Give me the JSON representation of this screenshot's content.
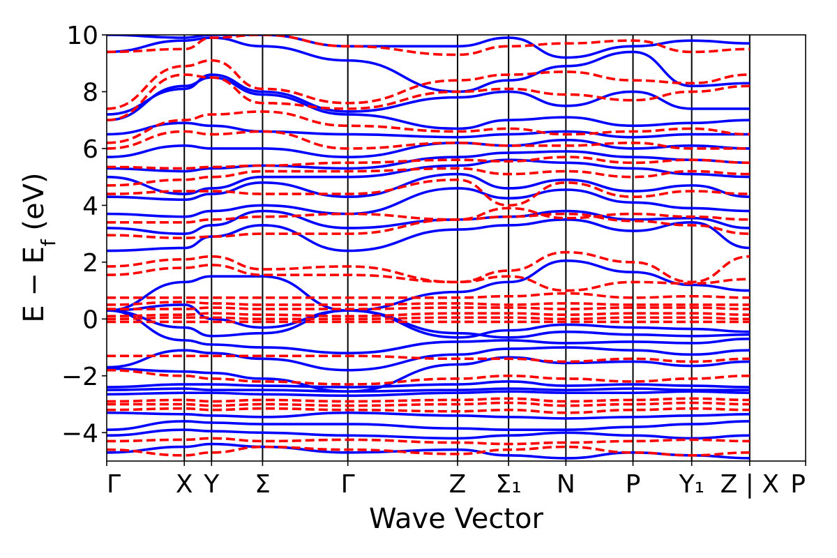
{
  "chart_data": {
    "type": "line",
    "title": "",
    "xlabel": "Wave Vector",
    "ylabel": "E − E_f (eV)",
    "ylim": [
      -5,
      10
    ],
    "yticks": [
      -4,
      -2,
      0,
      2,
      4,
      6,
      8,
      10
    ],
    "ytick_labels": [
      "−4",
      "−2",
      "0",
      "2",
      "4",
      "6",
      "8",
      "10"
    ],
    "xlim": [
      0,
      1
    ],
    "high_symmetry_points": [
      {
        "label": "Γ",
        "x": 0.0
      },
      {
        "label": "X",
        "x": 0.111
      },
      {
        "label": "Y",
        "x": 0.15
      },
      {
        "label": "Σ",
        "x": 0.223
      },
      {
        "label": "Γ",
        "x": 0.345
      },
      {
        "label": "Z",
        "x": 0.502
      },
      {
        "label": "Σ₁",
        "x": 0.575
      },
      {
        "label": "N",
        "x": 0.657
      },
      {
        "label": "P",
        "x": 0.753
      },
      {
        "label": "Y₁",
        "x": 0.837
      },
      {
        "label": "Z | X",
        "x": 0.92
      },
      {
        "label": "P",
        "x": 1.0
      }
    ],
    "vertical_lines": [
      0.111,
      0.15,
      0.223,
      0.345,
      0.502,
      0.575,
      0.657,
      0.753,
      0.837,
      0.92
    ],
    "grid": false,
    "series": [
      {
        "style": "solid",
        "color": "#0000ff",
        "bands": [
          [
            -4.7,
            -4.5,
            -4.4,
            -4.5,
            -4.7,
            -4.6,
            -4.8,
            -4.9,
            -4.7,
            -4.8,
            -4.9
          ],
          [
            -4.1,
            -3.9,
            -3.95,
            -4.0,
            -4.1,
            -4.2,
            -4.1,
            -4.0,
            -4.1,
            -4.2,
            -4.1
          ],
          [
            -3.9,
            -3.6,
            -3.65,
            -3.7,
            -3.7,
            -3.85,
            -3.9,
            -3.9,
            -3.8,
            -3.7,
            -3.6
          ],
          [
            -3.3,
            -3.35,
            -3.4,
            -3.45,
            -3.3,
            -3.4,
            -3.45,
            -3.5,
            -3.45,
            -3.4,
            -3.35
          ],
          [
            -2.65,
            -2.6,
            -2.6,
            -2.65,
            -2.7,
            -2.6,
            -2.55,
            -2.6,
            -2.6,
            -2.55,
            -2.6
          ],
          [
            -2.5,
            -2.45,
            -2.5,
            -2.5,
            -2.55,
            -2.5,
            -2.45,
            -2.5,
            -2.45,
            -2.5,
            -2.5
          ],
          [
            -2.4,
            -2.3,
            -2.3,
            -2.35,
            -2.4,
            -2.3,
            -2.2,
            -2.35,
            -2.3,
            -2.35,
            -2.4
          ],
          [
            -1.75,
            -1.85,
            -1.9,
            -2.1,
            -2.55,
            -1.6,
            -1.35,
            -1.55,
            -1.5,
            -1.65,
            -1.5
          ],
          [
            -1.7,
            -1.1,
            -1.2,
            -1.4,
            -1.8,
            -1.25,
            -1.05,
            -1.0,
            -1.1,
            -1.25,
            -1.1
          ],
          [
            0.3,
            -0.75,
            -0.9,
            -1.0,
            -1.2,
            -0.8,
            -0.75,
            -0.85,
            -0.8,
            -0.85,
            -0.7
          ],
          [
            0.3,
            -0.3,
            -0.6,
            -0.5,
            0.3,
            -0.5,
            -0.65,
            -0.45,
            -0.55,
            -0.6,
            -0.55
          ],
          [
            0.3,
            0.5,
            0.0,
            -0.3,
            0.3,
            -0.65,
            -0.4,
            -0.2,
            -0.3,
            -0.35,
            -0.45
          ],
          [
            0.3,
            1.3,
            1.5,
            1.5,
            0.3,
            0.95,
            1.3,
            2.05,
            1.65,
            1.2,
            1.0
          ],
          [
            2.4,
            2.5,
            2.9,
            3.3,
            2.4,
            3.15,
            3.3,
            3.5,
            3.1,
            3.4,
            2.5
          ],
          [
            3.2,
            3.0,
            3.3,
            3.8,
            3.2,
            3.5,
            3.6,
            3.8,
            3.5,
            3.55,
            3.2
          ],
          [
            3.7,
            3.6,
            3.8,
            4.0,
            3.7,
            4.6,
            4.25,
            4.55,
            4.1,
            3.9,
            3.8
          ],
          [
            4.3,
            4.2,
            4.4,
            4.8,
            4.3,
            5.1,
            4.6,
            4.9,
            4.5,
            4.7,
            4.3
          ],
          [
            5.0,
            4.4,
            4.6,
            5.0,
            5.0,
            5.4,
            5.6,
            5.5,
            5.3,
            5.1,
            5.0
          ],
          [
            5.3,
            5.2,
            5.3,
            5.4,
            5.3,
            5.7,
            5.85,
            5.9,
            5.7,
            5.6,
            5.5
          ],
          [
            5.7,
            6.1,
            6.0,
            6.0,
            5.7,
            6.2,
            6.1,
            6.3,
            6.0,
            6.1,
            6.0
          ],
          [
            6.5,
            6.9,
            6.8,
            6.6,
            6.5,
            6.4,
            6.5,
            6.6,
            6.4,
            6.5,
            6.5
          ],
          [
            7.0,
            8.2,
            8.5,
            7.9,
            7.2,
            6.7,
            7.0,
            7.1,
            6.8,
            6.9,
            7.0
          ],
          [
            7.2,
            8.1,
            8.6,
            8.0,
            7.3,
            7.8,
            8.0,
            7.5,
            8.0,
            7.4,
            7.4
          ],
          [
            9.4,
            9.8,
            9.9,
            9.6,
            9.1,
            8.0,
            8.4,
            8.9,
            9.4,
            8.2,
            8.3
          ],
          [
            10.0,
            9.9,
            10.0,
            10.0,
            9.6,
            9.6,
            9.9,
            9.2,
            9.6,
            9.8,
            9.7
          ]
        ]
      },
      {
        "style": "dashed",
        "color": "#ff0000",
        "bands": [
          [
            -4.6,
            -4.8,
            -4.7,
            -4.5,
            -4.6,
            -4.75,
            -4.6,
            -4.5,
            -4.7,
            -4.8,
            -4.7
          ],
          [
            -4.3,
            -4.25,
            -4.2,
            -4.3,
            -4.25,
            -4.35,
            -4.4,
            -4.35,
            -4.3,
            -4.25,
            -4.3
          ],
          [
            -3.2,
            -3.15,
            -3.2,
            -3.15,
            -3.2,
            -3.25,
            -3.2,
            -3.3,
            -3.2,
            -3.15,
            -3.2
          ],
          [
            -3.0,
            -3.0,
            -3.05,
            -3.0,
            -3.05,
            -3.0,
            -2.95,
            -3.05,
            -3.0,
            -2.95,
            -3.0
          ],
          [
            -2.9,
            -2.85,
            -2.9,
            -2.85,
            -2.9,
            -2.85,
            -2.8,
            -2.9,
            -2.85,
            -2.8,
            -2.85
          ],
          [
            -1.8,
            -2.0,
            -2.1,
            -2.2,
            -2.3,
            -2.1,
            -2.0,
            -2.1,
            -2.2,
            -2.1,
            -2.0
          ],
          [
            -1.3,
            -1.3,
            -1.3,
            -1.3,
            -1.3,
            -1.4,
            -1.4,
            -1.5,
            -1.4,
            -1.5,
            -1.4
          ],
          [
            -0.1,
            -0.1,
            -0.1,
            -0.1,
            -0.1,
            -0.1,
            -0.1,
            -0.1,
            -0.1,
            -0.1,
            -0.1
          ],
          [
            0.0,
            0.05,
            0.05,
            0.0,
            0.0,
            0.05,
            0.05,
            0.0,
            0.05,
            0.05,
            0.0
          ],
          [
            0.1,
            0.15,
            0.2,
            0.15,
            0.1,
            0.2,
            0.2,
            0.15,
            0.2,
            0.2,
            0.15
          ],
          [
            0.35,
            0.35,
            0.4,
            0.35,
            0.35,
            0.4,
            0.4,
            0.35,
            0.4,
            0.4,
            0.35
          ],
          [
            0.5,
            0.6,
            0.55,
            0.5,
            0.5,
            0.55,
            0.5,
            0.55,
            0.5,
            0.5,
            0.5
          ],
          [
            0.75,
            0.75,
            0.75,
            0.75,
            0.75,
            0.75,
            0.8,
            0.9,
            0.75,
            0.8,
            0.75
          ],
          [
            1.55,
            1.8,
            1.9,
            1.55,
            1.55,
            1.3,
            1.5,
            1.0,
            1.3,
            1.25,
            1.4
          ],
          [
            1.85,
            2.1,
            2.2,
            1.75,
            1.85,
            1.3,
            1.7,
            2.35,
            2.0,
            1.3,
            2.2
          ],
          [
            2.95,
            2.85,
            2.9,
            3.0,
            3.0,
            3.5,
            3.6,
            3.7,
            3.45,
            3.3,
            3.0
          ],
          [
            3.4,
            3.4,
            3.5,
            3.6,
            3.7,
            3.5,
            3.9,
            3.55,
            3.7,
            3.6,
            3.5
          ],
          [
            4.4,
            4.5,
            4.5,
            4.4,
            4.4,
            4.9,
            4.0,
            4.8,
            4.3,
            4.5,
            4.4
          ],
          [
            4.7,
            4.9,
            5.0,
            5.2,
            5.2,
            5.3,
            5.1,
            5.2,
            5.0,
            5.2,
            5.1
          ],
          [
            5.35,
            5.3,
            5.35,
            5.4,
            5.5,
            5.6,
            5.55,
            5.7,
            5.5,
            5.6,
            5.5
          ],
          [
            6.0,
            6.6,
            6.5,
            6.6,
            6.0,
            6.2,
            6.1,
            6.1,
            6.2,
            6.0,
            6.0
          ],
          [
            6.2,
            7.0,
            7.2,
            7.3,
            6.8,
            6.6,
            6.7,
            6.5,
            6.6,
            6.7,
            6.5
          ],
          [
            7.0,
            8.6,
            8.5,
            7.6,
            7.4,
            8.0,
            8.1,
            7.9,
            7.7,
            8.0,
            8.2
          ],
          [
            7.4,
            8.9,
            9.1,
            8.1,
            7.6,
            8.4,
            8.6,
            8.7,
            8.4,
            8.3,
            8.6
          ],
          [
            9.4,
            9.5,
            9.9,
            10.0,
            9.6,
            9.3,
            9.6,
            9.7,
            9.8,
            9.4,
            9.5
          ]
        ]
      }
    ]
  }
}
